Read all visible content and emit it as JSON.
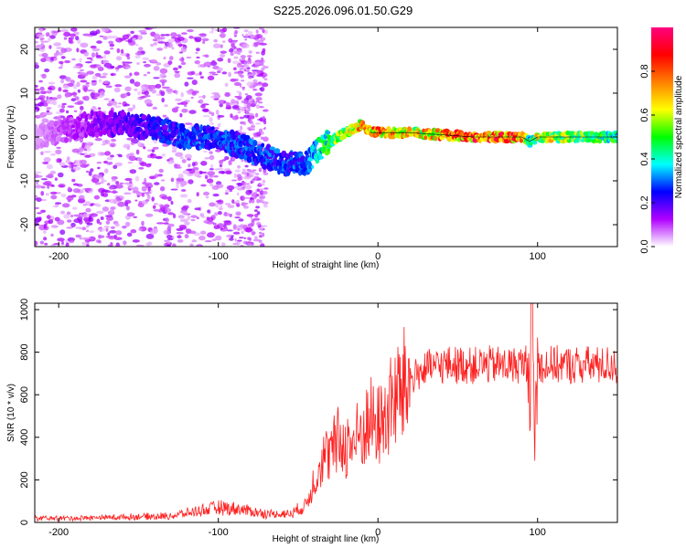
{
  "title": "S225.2026.096.01.50.G29",
  "chart_data": [
    {
      "type": "heatmap",
      "xlabel": "Height of straight line (km)",
      "ylabel": "Frequency (Hz)",
      "xlim": [
        -215,
        150
      ],
      "ylim": [
        -25,
        25
      ],
      "xticks": [
        -200,
        -100,
        0,
        100
      ],
      "yticks": [
        -20,
        -10,
        0,
        10,
        20
      ],
      "colorbar": {
        "label": "Normalized spectral amplitude",
        "range": [
          0,
          1
        ],
        "ticks": [
          "0.0",
          "0.2",
          "0.4",
          "0.6",
          "0.8"
        ],
        "colors": [
          "#ffffff",
          "#b000ff",
          "#0000ff",
          "#00ffff",
          "#00ff00",
          "#ffff00",
          "#ff8000",
          "#ff0000",
          "#ff0080"
        ]
      },
      "ridge": {
        "x": [
          -215,
          -180,
          -160,
          -140,
          -120,
          -100,
          -80,
          -60,
          -45,
          -35,
          -25,
          -15,
          -10,
          -5,
          0,
          20,
          60,
          90,
          95,
          100,
          150
        ],
        "y": [
          0,
          3,
          3,
          2,
          0,
          0,
          -3,
          -6,
          -6,
          -2,
          0,
          2,
          3,
          1,
          1,
          1,
          0,
          0,
          -1,
          0,
          0
        ],
        "amplitude": [
          0.05,
          0.15,
          0.2,
          0.25,
          0.3,
          0.3,
          0.3,
          0.3,
          0.3,
          0.5,
          0.6,
          0.7,
          0.8,
          0.8,
          0.85,
          0.7,
          0.9,
          0.9,
          0.4,
          0.7,
          0.5
        ]
      }
    },
    {
      "type": "line",
      "xlabel": "Height of straight line (km)",
      "ylabel": "SNR (10 * v/v)",
      "xlim": [
        -215,
        150
      ],
      "ylim": [
        0,
        1030
      ],
      "xticks": [
        -200,
        -100,
        0,
        100
      ],
      "yticks": [
        0,
        200,
        400,
        600,
        800,
        1000
      ],
      "color": "#ff2020",
      "series": [
        {
          "name": "SNR",
          "x": [
            -215,
            -190,
            -160,
            -130,
            -115,
            -100,
            -85,
            -70,
            -55,
            -45,
            -40,
            -35,
            -30,
            -25,
            -20,
            -15,
            -10,
            -5,
            0,
            5,
            10,
            15,
            20,
            25,
            30,
            40,
            50,
            70,
            90,
            95,
            97,
            98,
            100,
            120,
            150
          ],
          "y": [
            20,
            20,
            25,
            30,
            50,
            70,
            60,
            40,
            40,
            80,
            200,
            300,
            320,
            380,
            360,
            380,
            420,
            480,
            450,
            500,
            580,
            620,
            680,
            700,
            720,
            740,
            740,
            740,
            740,
            760,
            900,
            380,
            740,
            740,
            740
          ]
        }
      ]
    }
  ]
}
